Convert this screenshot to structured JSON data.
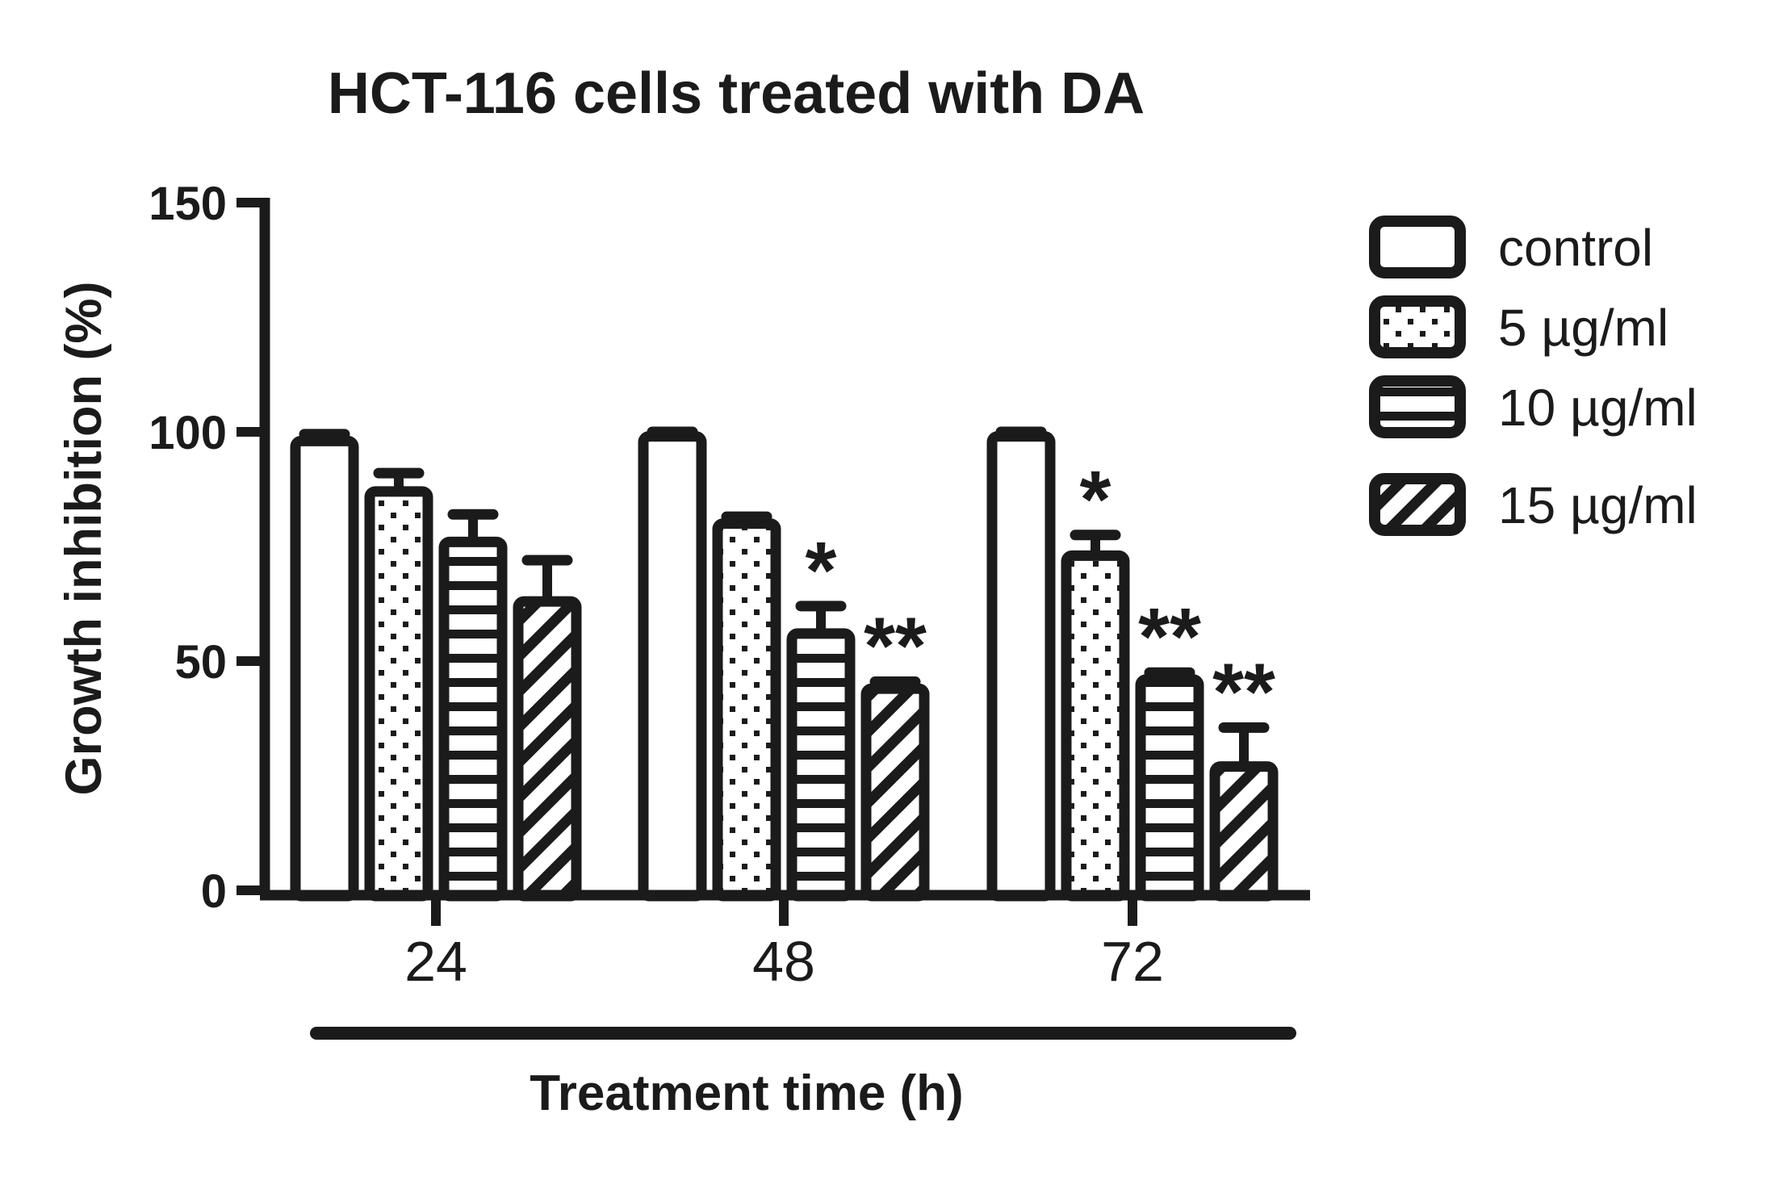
{
  "title": "HCT-116 cells treated with DA",
  "y_axis": {
    "label": "Growth inhibition (%)",
    "ticks": [
      "0",
      "50",
      "100",
      "150"
    ],
    "tick_values": [
      0,
      50,
      100,
      150
    ],
    "max": 150
  },
  "x_axis": {
    "label": "Treatment time (h)",
    "categories": [
      "24",
      "48",
      "72"
    ]
  },
  "legend": {
    "items": [
      {
        "label": "control",
        "pattern": "plain",
        "swatch_name": "plain-swatch"
      },
      {
        "label": "5 µg/ml",
        "pattern": "dots",
        "swatch_name": "dots-swatch"
      },
      {
        "label": "10 µg/ml",
        "pattern": "hlines",
        "swatch_name": "hlines-swatch"
      },
      {
        "label": "15 µg/ml",
        "pattern": "diagonal",
        "swatch_name": "diagonal-swatch"
      }
    ]
  },
  "chart_data": {
    "type": "bar",
    "title": "HCT-116 cells treated with DA",
    "xlabel": "Treatment time (h)",
    "ylabel": "Growth inhibition (%)",
    "ylim": [
      0,
      150
    ],
    "grid": false,
    "legend_position": "right",
    "categories": [
      "24",
      "48",
      "72"
    ],
    "series": [
      {
        "name": "control",
        "pattern": "plain",
        "values": [
          98,
          99,
          99
        ],
        "errors": [
          1.5,
          1,
          1
        ],
        "significance": [
          "",
          "",
          ""
        ]
      },
      {
        "name": "5 µg/ml",
        "pattern": "dots",
        "values": [
          87,
          80,
          73
        ],
        "errors": [
          4,
          1.5,
          4.5
        ],
        "significance": [
          "",
          "",
          "*"
        ]
      },
      {
        "name": "10 µg/ml",
        "pattern": "hlines",
        "values": [
          76,
          56,
          46
        ],
        "errors": [
          6,
          6,
          1.5
        ],
        "significance": [
          "",
          "*",
          "**"
        ]
      },
      {
        "name": "15 µg/ml",
        "pattern": "diagonal",
        "values": [
          63,
          44,
          27
        ],
        "errors": [
          9,
          1.5,
          8.5
        ],
        "significance": [
          "",
          "**",
          "**"
        ]
      }
    ]
  },
  "colors": {
    "ink": "#1b1b1b",
    "background": "#ffffff"
  }
}
